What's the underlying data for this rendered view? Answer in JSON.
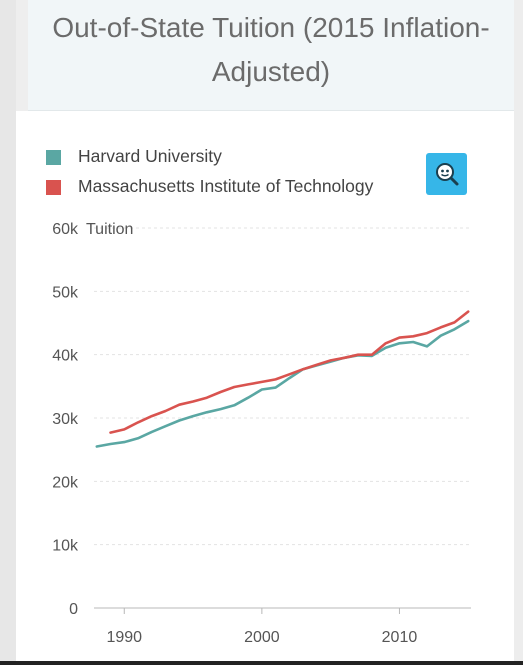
{
  "page": {
    "title": "Out-of-State Tuition (2015 Inflation-Adjusted)",
    "title_lines": [
      "Out-of-State Tuition (2015 Inflation-",
      "Adjusted)"
    ]
  },
  "zoom": {
    "icon": "magnifier-icon"
  },
  "chart_data": {
    "type": "line",
    "title": "Out-of-State Tuition (2015 Inflation-Adjusted)",
    "ylabel": "Tuition",
    "xlabel": "",
    "ylim": [
      0,
      60000
    ],
    "xlim": [
      1987.8,
      2015.2
    ],
    "yticks": [
      0,
      10000,
      20000,
      30000,
      40000,
      50000,
      60000
    ],
    "ytick_labels": [
      "0",
      "10k",
      "20k",
      "30k",
      "40k",
      "50k",
      "60k"
    ],
    "xticks": [
      1990,
      2000,
      2010
    ],
    "xtick_labels": [
      "1990",
      "2000",
      "2010"
    ],
    "grid": true,
    "legend_position": "top-left",
    "series": [
      {
        "name": "Harvard University",
        "color": "#5aa7a3",
        "x": [
          1988,
          1989,
          1990,
          1991,
          1992,
          1993,
          1994,
          1995,
          1996,
          1997,
          1998,
          1999,
          2000,
          2001,
          2002,
          2003,
          2004,
          2005,
          2006,
          2007,
          2008,
          2009,
          2010,
          2011,
          2012,
          2013,
          2014,
          2015
        ],
        "values": [
          25500,
          25900,
          26200,
          26800,
          27800,
          28700,
          29600,
          30300,
          30900,
          31400,
          32000,
          33200,
          34500,
          34800,
          36300,
          37700,
          38300,
          38900,
          39500,
          39900,
          39800,
          41100,
          41800,
          42000,
          41300,
          43000,
          44000,
          45300
        ]
      },
      {
        "name": "Massachusetts Institute of Technology",
        "color": "#d9534f",
        "x": [
          1989,
          1990,
          1991,
          1992,
          1993,
          1994,
          1995,
          1996,
          1997,
          1998,
          1999,
          2000,
          2001,
          2002,
          2003,
          2004,
          2005,
          2006,
          2007,
          2008,
          2009,
          2010,
          2011,
          2012,
          2013,
          2014,
          2015
        ],
        "values": [
          27700,
          28200,
          29300,
          30300,
          31100,
          32100,
          32600,
          33200,
          34100,
          34900,
          35300,
          35700,
          36100,
          36900,
          37700,
          38400,
          39100,
          39500,
          40000,
          40000,
          41800,
          42700,
          42900,
          43400,
          44300,
          45100,
          46800
        ]
      }
    ]
  }
}
